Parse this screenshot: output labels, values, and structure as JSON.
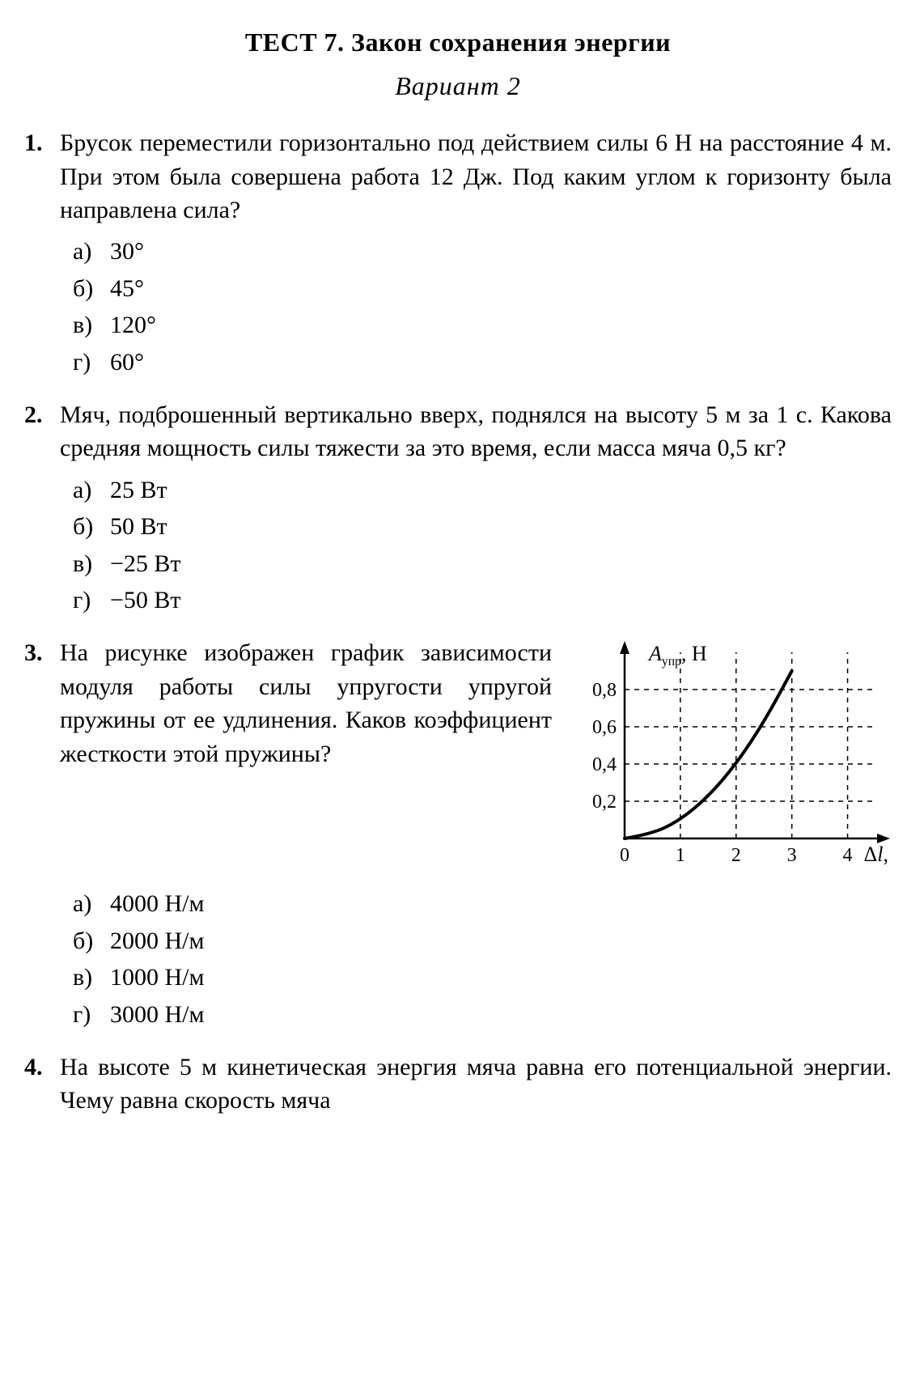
{
  "title": "ТЕСТ 7. Закон сохранения энергии",
  "subtitle": "Вариант 2",
  "questions": {
    "q1": {
      "num": "1.",
      "text": "Брусок переместили горизонтально под действием силы 6 Н на расстояние 4 м. При этом была совершена работа 12 Дж. Под каким углом к горизонту была направлена сила?",
      "options": {
        "a": {
          "label": "а)",
          "value": "30°"
        },
        "b": {
          "label": "б)",
          "value": "45°"
        },
        "c": {
          "label": "в)",
          "value": "120°"
        },
        "d": {
          "label": "г)",
          "value": "60°"
        }
      }
    },
    "q2": {
      "num": "2.",
      "text": "Мяч, подброшенный вертикально вверх, поднялся на высоту 5 м за 1 с. Какова средняя мощность силы тяжести за это время, если масса мяча 0,5 кг?",
      "options": {
        "a": {
          "label": "а)",
          "value": "25 Вт"
        },
        "b": {
          "label": "б)",
          "value": "50 Вт"
        },
        "c": {
          "label": "в)",
          "value": "−25 Вт"
        },
        "d": {
          "label": "г)",
          "value": "−50 Вт"
        }
      }
    },
    "q3": {
      "num": "3.",
      "text": "На рисунке изображен график зависимости модуля работы силы упругости упругой пружины от ее удлинения. Каков коэффициент жесткости этой пружины?",
      "options": {
        "a": {
          "label": "а)",
          "value": "4000 Н/м"
        },
        "b": {
          "label": "б)",
          "value": "2000 Н/м"
        },
        "c": {
          "label": "в)",
          "value": "1000 Н/м"
        },
        "d": {
          "label": "г)",
          "value": "3000 Н/м"
        }
      },
      "chart": {
        "type": "line",
        "y_axis_label_main": "A",
        "y_axis_label_sub": "упр",
        "y_axis_label_unit": ", Н",
        "x_axis_label_delta": "Δ",
        "x_axis_label_var": "l",
        "x_axis_label_unit": ", см",
        "x_ticks": [
          "0",
          "1",
          "2",
          "3",
          "4"
        ],
        "y_ticks": [
          "0,2",
          "0,4",
          "0,6",
          "0,8"
        ],
        "xlim": [
          0,
          4.5
        ],
        "ylim": [
          0,
          1.0
        ],
        "x_tick_positions": [
          0,
          1,
          2,
          3,
          4
        ],
        "y_tick_positions": [
          0.2,
          0.4,
          0.6,
          0.8
        ],
        "curve_points": [
          [
            0,
            0
          ],
          [
            0.5,
            0.025
          ],
          [
            1.0,
            0.1
          ],
          [
            1.5,
            0.225
          ],
          [
            2.0,
            0.4
          ],
          [
            2.5,
            0.625
          ],
          [
            3.0,
            0.9
          ]
        ],
        "axis_color": "#000000",
        "grid_color": "#000000",
        "grid_dash": "6,6",
        "curve_color": "#000000",
        "curve_width": 4,
        "axis_width": 2.5,
        "tick_font_size": 24,
        "label_font_size": 26,
        "background_color": "#ffffff"
      }
    },
    "q4": {
      "num": "4.",
      "text": "На высоте 5 м кинетическая энергия мяча равна его потенциальной энергии. Чему равна скорость мяча"
    }
  }
}
